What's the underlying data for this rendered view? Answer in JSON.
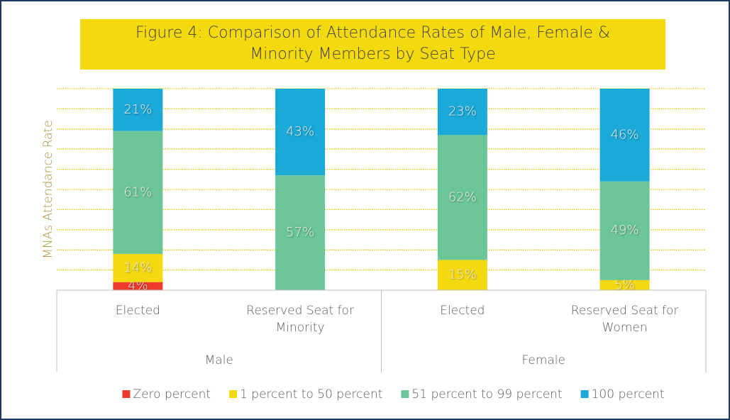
{
  "chart_data": {
    "type": "stacked_bar",
    "title": "Figure 4: Comparison of Attendance Rates of Male, Female & Minority Members by Seat Type",
    "y_label": "MNAs Attendance Rate",
    "categories": [
      "Elected",
      "Reserved Seat for Minority",
      "Elected",
      "Reserved Seat for Women"
    ],
    "groups": [
      {
        "name": "Male",
        "span": [
          0,
          1
        ]
      },
      {
        "name": "Female",
        "span": [
          2,
          3
        ]
      }
    ],
    "series": [
      {
        "name": "Zero percent",
        "color": "#ee3b2b",
        "values": [
          4,
          null,
          null,
          null
        ],
        "value_labels": [
          "4%",
          null,
          null,
          null
        ]
      },
      {
        "name": "1 percent to 50 percent",
        "color": "#f5d90f",
        "values": [
          14,
          null,
          15,
          5
        ],
        "value_labels": [
          "14%",
          null,
          "15%",
          "5%"
        ]
      },
      {
        "name": "51 percent to 99 percent",
        "color": "#6cc596",
        "values": [
          61,
          57,
          62,
          49
        ],
        "value_labels": [
          "61%",
          "57%",
          "62%",
          "49%"
        ]
      },
      {
        "name": "100 percent",
        "color": "#1ba9d8",
        "values": [
          21,
          43,
          23,
          46
        ],
        "value_labels": [
          "21%",
          "43%",
          "23%",
          "46%"
        ]
      }
    ],
    "ylim": [
      0,
      100
    ],
    "yticks": [
      0,
      10,
      20,
      30,
      40,
      50,
      60,
      70,
      80,
      90,
      100
    ],
    "grid": true,
    "legend": "bottom"
  }
}
